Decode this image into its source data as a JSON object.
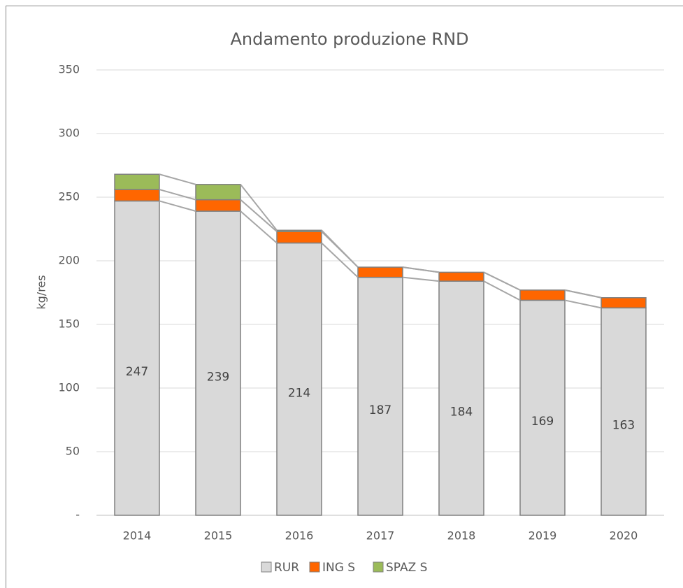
{
  "chart_data": {
    "type": "stacked_bar",
    "title": "Andamento produzione RND",
    "y_label": "kg/res",
    "categories": [
      "2014",
      "2015",
      "2016",
      "2017",
      "2018",
      "2019",
      "2020"
    ],
    "series": [
      {
        "name": "RUR",
        "color": "#d9d9d9",
        "values": [
          247,
          239,
          214,
          187,
          184,
          169,
          163
        ],
        "data_labels": true
      },
      {
        "name": "ING S",
        "color": "#ff6600",
        "values": [
          9,
          9,
          9,
          8,
          7,
          8,
          8
        ]
      },
      {
        "name": "SPAZ S",
        "color": "#9bbb59",
        "values": [
          12,
          12,
          1,
          0,
          0,
          0,
          0
        ]
      }
    ],
    "ylim": [
      0,
      350
    ],
    "yticks": [
      {
        "value": 0,
        "label": "-"
      },
      50,
      100,
      150,
      200,
      250,
      300,
      350
    ],
    "grid": true,
    "series_lines": true,
    "legend": "bottom"
  }
}
